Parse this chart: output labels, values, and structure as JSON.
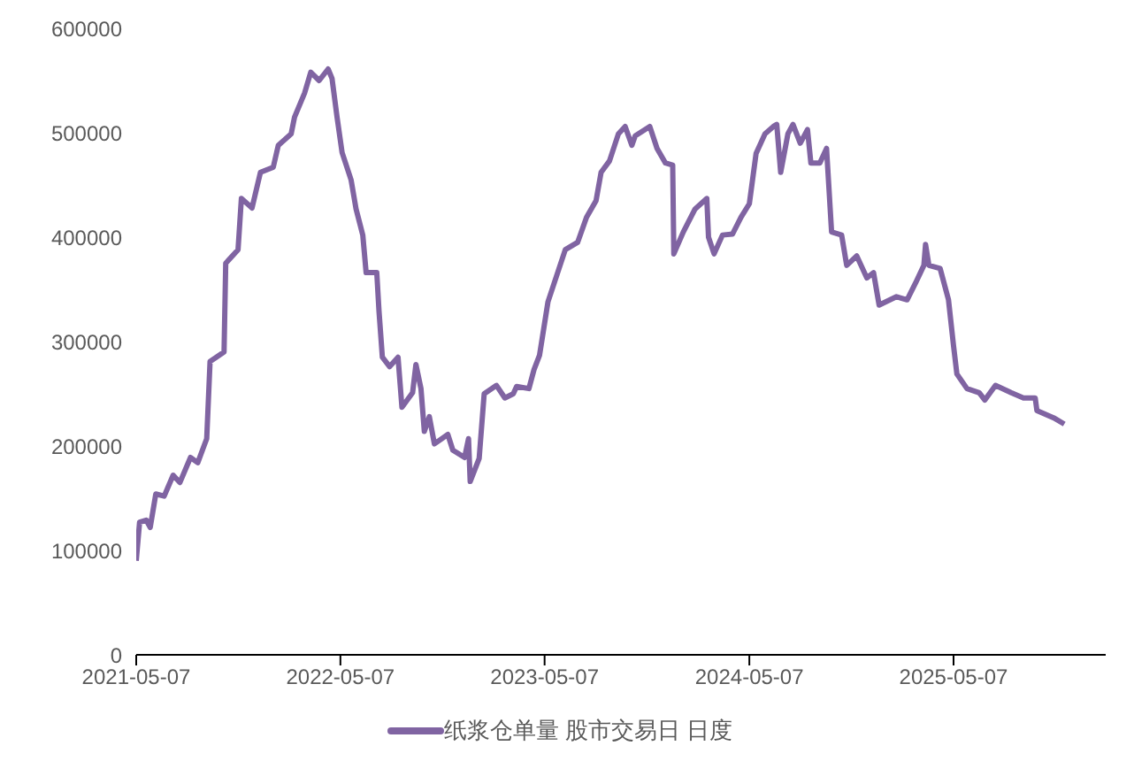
{
  "chart_data": {
    "type": "line",
    "x": [
      "2021-05-07",
      "2021-05-13",
      "2021-05-25",
      "2021-06-01",
      "2021-06-11",
      "2021-06-26",
      "2021-07-12",
      "2021-07-24",
      "2021-08-12",
      "2021-08-25",
      "2021-09-10",
      "2021-09-16",
      "2021-10-11",
      "2021-10-14",
      "2021-11-05",
      "2021-11-11",
      "2021-11-30",
      "2021-12-15",
      "2022-01-07",
      "2022-01-16",
      "2022-02-08",
      "2022-02-14",
      "2022-03-04",
      "2022-03-15",
      "2022-03-30",
      "2022-04-15",
      "2022-04-22",
      "2022-05-01",
      "2022-05-10",
      "2022-05-26",
      "2022-06-04",
      "2022-06-16",
      "2022-06-22",
      "2022-07-11",
      "2022-07-15",
      "2022-07-21",
      "2022-08-03",
      "2022-08-18",
      "2022-08-25",
      "2022-09-13",
      "2022-09-19",
      "2022-09-28",
      "2022-10-04",
      "2022-10-13",
      "2022-10-22",
      "2022-11-15",
      "2022-11-24",
      "2022-12-15",
      "2022-12-22",
      "2022-12-25",
      "2023-01-10",
      "2023-01-19",
      "2023-02-10",
      "2023-02-25",
      "2023-03-12",
      "2023-03-18",
      "2023-04-09",
      "2023-04-18",
      "2023-04-28",
      "2023-05-13",
      "2023-06-13",
      "2023-07-05",
      "2023-07-21",
      "2023-08-07",
      "2023-08-16",
      "2023-08-31",
      "2023-09-16",
      "2023-09-28",
      "2023-10-10",
      "2023-10-16",
      "2023-11-11",
      "2023-11-24",
      "2023-12-09",
      "2023-12-22",
      "2023-12-24",
      "2024-01-10",
      "2024-01-31",
      "2024-02-21",
      "2024-02-24",
      "2024-03-05",
      "2024-03-20",
      "2024-04-07",
      "2024-04-22",
      "2024-05-07",
      "2024-05-19",
      "2024-06-04",
      "2024-06-19",
      "2024-06-25",
      "2024-07-02",
      "2024-07-15",
      "2024-07-24",
      "2024-08-06",
      "2024-08-19",
      "2024-08-25",
      "2024-09-10",
      "2024-09-22",
      "2024-10-01",
      "2024-10-19",
      "2024-10-28",
      "2024-11-15",
      "2024-12-03",
      "2024-12-15",
      "2024-12-25",
      "2025-01-25",
      "2025-02-13",
      "2025-02-28",
      "2025-03-15",
      "2025-03-18",
      "2025-03-24",
      "2025-04-13",
      "2025-04-28",
      "2025-05-07",
      "2025-05-13",
      "2025-05-31",
      "2025-06-22",
      "2025-07-02",
      "2025-07-21",
      "2025-08-18",
      "2025-09-09",
      "2025-09-30",
      "2025-10-03",
      "2025-11-02",
      "2025-11-21"
    ],
    "series": [
      {
        "name": "纸浆仓单量 股市交易日 日度",
        "color": "#8064a2",
        "values": [
          90000,
          127000,
          129000,
          122000,
          154000,
          152000,
          172000,
          165000,
          189000,
          184000,
          207000,
          281000,
          290000,
          375000,
          388000,
          437000,
          428000,
          462000,
          467000,
          488000,
          499000,
          515000,
          538000,
          558000,
          550000,
          561000,
          552000,
          515000,
          481000,
          455000,
          427000,
          402000,
          366000,
          366000,
          329000,
          285000,
          276000,
          285000,
          237000,
          251000,
          278000,
          255000,
          214000,
          228000,
          202000,
          211000,
          196000,
          189000,
          207000,
          166000,
          188000,
          250000,
          258000,
          246000,
          250000,
          257000,
          255000,
          273000,
          287000,
          338000,
          388000,
          395000,
          419000,
          435000,
          462000,
          473000,
          499000,
          506000,
          488000,
          497000,
          506000,
          485000,
          471000,
          469000,
          384000,
          405000,
          427000,
          437000,
          400000,
          384000,
          402000,
          403000,
          419000,
          432000,
          480000,
          499000,
          506000,
          508000,
          462000,
          499000,
          508000,
          490000,
          503000,
          471000,
          471000,
          485000,
          405000,
          402000,
          373000,
          382000,
          361000,
          366000,
          335000,
          343000,
          340000,
          356000,
          373000,
          393000,
          373000,
          370000,
          340000,
          296000,
          269000,
          255000,
          251000,
          244000,
          258000,
          251000,
          246000,
          246000,
          234000,
          227000,
          221000
        ]
      }
    ],
    "xlim": [
      "2021-05-07",
      "2026-02-03"
    ],
    "xticks": [
      "2021-05-07",
      "2022-05-07",
      "2023-05-07",
      "2024-05-07",
      "2025-05-07"
    ],
    "ylim": [
      0,
      600000
    ],
    "yticks": [
      0,
      100000,
      200000,
      300000,
      400000,
      500000,
      600000
    ],
    "grid": false,
    "legend": "bottom",
    "marker": "none",
    "line_style": "solid"
  }
}
